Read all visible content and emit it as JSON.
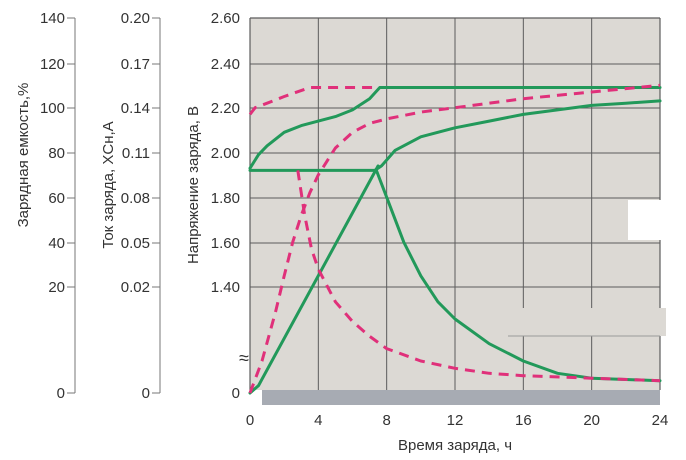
{
  "chart_data": {
    "type": "line",
    "xlabel": "Время заряда, ч",
    "x_ticks": [
      "0",
      "4",
      "8",
      "12",
      "16",
      "20",
      "24"
    ],
    "xlim": [
      0,
      24
    ],
    "grid": true,
    "colors": {
      "plot_bg": "#dcd9d4",
      "grid": "#5c5c5c",
      "green": "#22995a",
      "pink": "#e0307a",
      "base_band": "#a7abb3",
      "axis": "#777777"
    },
    "axes": [
      {
        "label": "Зарядная емкость,%",
        "ticks": [
          "140",
          "120",
          "100",
          "80",
          "60",
          "40",
          "20",
          "0"
        ],
        "range": [
          0,
          140
        ]
      },
      {
        "label": "Ток заряда, XCн,A",
        "ticks": [
          "0.20",
          "0.17",
          "0.14",
          "0.11",
          "0.08",
          "0.05",
          "0.02",
          "0"
        ],
        "range": [
          0,
          0.2
        ]
      },
      {
        "label": "Напряжение заряда, В",
        "ticks": [
          "2.60",
          "2.40",
          "2.20",
          "2.00",
          "1.80",
          "1.60",
          "1.40",
          "0"
        ],
        "range": [
          1.0,
          2.6
        ],
        "axis_break": "≈"
      }
    ],
    "series": [
      {
        "style": "green-solid",
        "points": [
          [
            0,
            1.93
          ],
          [
            0.5,
            1.99
          ],
          [
            1,
            2.03
          ],
          [
            2,
            2.09
          ],
          [
            3,
            2.12
          ],
          [
            4,
            2.14
          ],
          [
            5,
            2.16
          ],
          [
            6,
            2.19
          ],
          [
            7,
            2.24
          ],
          [
            7.6,
            2.29
          ],
          [
            24,
            2.29
          ]
        ]
      },
      {
        "style": "green-solid",
        "points": [
          [
            0,
            1.92
          ],
          [
            7.3,
            1.92
          ],
          [
            7.7,
            1.94
          ],
          [
            8.5,
            2.01
          ],
          [
            10,
            2.07
          ],
          [
            12,
            2.11
          ],
          [
            14,
            2.14
          ],
          [
            16,
            2.17
          ],
          [
            18,
            2.19
          ],
          [
            20,
            2.21
          ],
          [
            22,
            2.22
          ],
          [
            24,
            2.23
          ]
        ]
      },
      {
        "style": "green-solid",
        "points": [
          [
            0,
            0.97
          ],
          [
            0.5,
            1.0
          ],
          [
            7.5,
            1.94
          ]
        ]
      },
      {
        "style": "green-solid",
        "points": [
          [
            7.4,
            1.92
          ],
          [
            8,
            1.8
          ],
          [
            9,
            1.6
          ],
          [
            10,
            1.45
          ],
          [
            11,
            1.34
          ],
          [
            12,
            1.27
          ],
          [
            14,
            1.17
          ],
          [
            16,
            1.1
          ],
          [
            18,
            1.05
          ],
          [
            20,
            1.03
          ],
          [
            24,
            1.02
          ]
        ]
      },
      {
        "style": "pink-dashed",
        "points": [
          [
            0,
            2.17
          ],
          [
            0.3,
            2.2
          ],
          [
            1,
            2.22
          ],
          [
            2,
            2.25
          ],
          [
            3.5,
            2.29
          ],
          [
            7.5,
            2.29
          ]
        ]
      },
      {
        "style": "pink-dashed",
        "points": [
          [
            0,
            0.97
          ],
          [
            0.7,
            1.1
          ],
          [
            1.5,
            1.3
          ],
          [
            2,
            1.45
          ],
          [
            2.5,
            1.6
          ],
          [
            3,
            1.72
          ],
          [
            3.5,
            1.82
          ],
          [
            4,
            1.9
          ],
          [
            5,
            2.02
          ],
          [
            6,
            2.09
          ],
          [
            7,
            2.13
          ],
          [
            8,
            2.15
          ],
          [
            10,
            2.18
          ],
          [
            12,
            2.2
          ],
          [
            16,
            2.24
          ],
          [
            20,
            2.27
          ],
          [
            24,
            2.3
          ]
        ]
      },
      {
        "style": "pink-dashed",
        "points": [
          [
            2.8,
            1.92
          ],
          [
            3.2,
            1.72
          ],
          [
            3.6,
            1.57
          ],
          [
            4,
            1.48
          ],
          [
            5,
            1.34
          ],
          [
            6,
            1.26
          ],
          [
            7,
            1.2
          ],
          [
            8,
            1.15
          ],
          [
            10,
            1.1
          ],
          [
            12,
            1.07
          ],
          [
            14,
            1.05
          ],
          [
            16,
            1.04
          ],
          [
            20,
            1.03
          ],
          [
            24,
            1.02
          ]
        ]
      }
    ]
  }
}
